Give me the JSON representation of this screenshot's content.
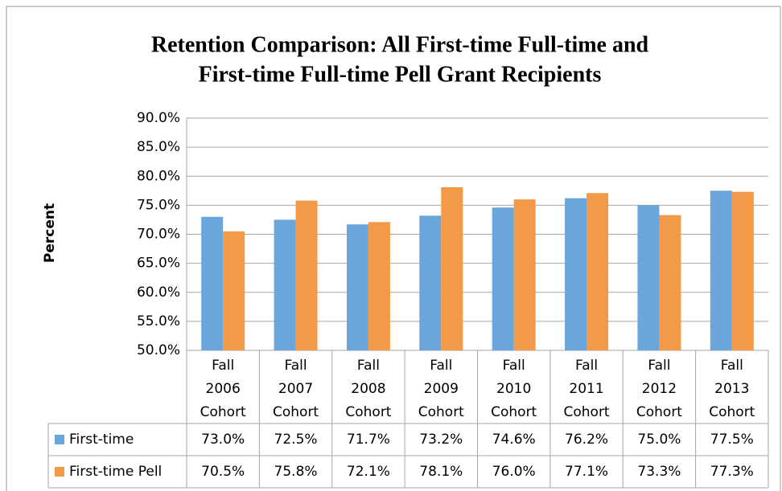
{
  "chart_data": {
    "type": "bar",
    "title": [
      "Retention Comparison: All First-time Full-time and",
      "First-time Full-time Pell Grant Recipients"
    ],
    "ylabel": "Percent",
    "categories": [
      [
        "Fall",
        "2006",
        "Cohort"
      ],
      [
        "Fall",
        "2007",
        "Cohort"
      ],
      [
        "Fall",
        "2008",
        "Cohort"
      ],
      [
        "Fall",
        "2009",
        "Cohort"
      ],
      [
        "Fall",
        "2010",
        "Cohort"
      ],
      [
        "Fall",
        "2011",
        "Cohort"
      ],
      [
        "Fall",
        "2012",
        "Cohort"
      ],
      [
        "Fall",
        "2013",
        "Cohort"
      ]
    ],
    "series": [
      {
        "name": "First-time",
        "color": "#6aa5dc",
        "values": [
          73.0,
          72.5,
          71.7,
          73.2,
          74.6,
          76.2,
          75.0,
          77.5
        ],
        "value_labels": [
          "73.0%",
          "72.5%",
          "71.7%",
          "73.2%",
          "74.6%",
          "76.2%",
          "75.0%",
          "77.5%"
        ]
      },
      {
        "name": "First-time Pell",
        "color": "#f29a48",
        "values": [
          70.5,
          75.8,
          72.1,
          78.1,
          76.0,
          77.1,
          73.3,
          77.3
        ],
        "value_labels": [
          "70.5%",
          "75.8%",
          "72.1%",
          "78.1%",
          "76.0%",
          "77.1%",
          "73.3%",
          "77.3%"
        ]
      }
    ],
    "ylim": [
      50,
      90
    ],
    "yticks": [
      {
        "value": 50,
        "label": "50.0%"
      },
      {
        "value": 55,
        "label": "55.0%"
      },
      {
        "value": 60,
        "label": "60.0%"
      },
      {
        "value": 65,
        "label": "65.0%"
      },
      {
        "value": 70,
        "label": "70.0%"
      },
      {
        "value": 75,
        "label": "75.0%"
      },
      {
        "value": 80,
        "label": "80.0%"
      },
      {
        "value": 85,
        "label": "85.0%"
      },
      {
        "value": 90,
        "label": "90.0%"
      }
    ],
    "grid": true
  }
}
